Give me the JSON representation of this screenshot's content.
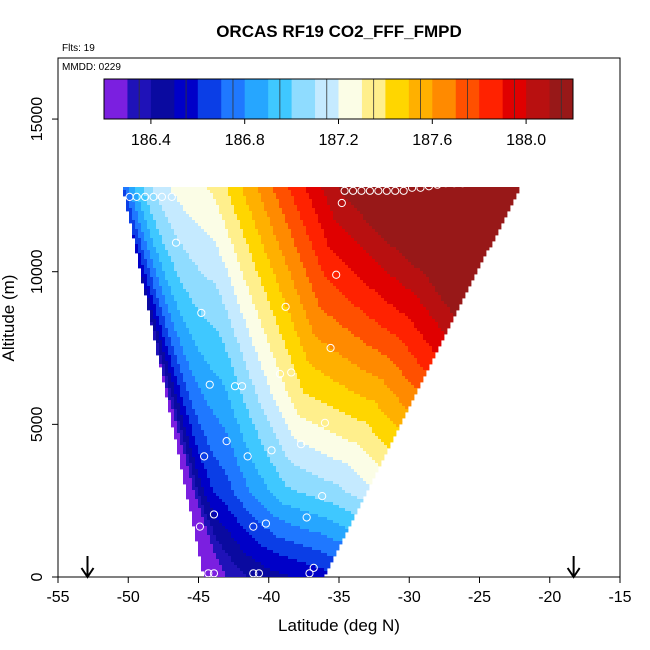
{
  "chart_data": {
    "type": "heatmap",
    "title": "ORCAS RF19 CO2_FFF_FMPD",
    "flights_label": "Flts: 19",
    "date_label": "MMDD: 0229",
    "xlabel": "Latitude (deg N)",
    "ylabel": "Altitude (m)",
    "xlim": [
      -55,
      -15
    ],
    "ylim": [
      0,
      17000
    ],
    "x_ticks": [
      -55,
      -50,
      -45,
      -40,
      -35,
      -30,
      -25,
      -20,
      -15
    ],
    "y_ticks": [
      0,
      5000,
      10000,
      15000
    ],
    "x_tick_labels": [
      "-55",
      "-50",
      "-45",
      "-40",
      "-35",
      "-30",
      "-25",
      "-20",
      "-15"
    ],
    "y_tick_labels": [
      "0",
      "5000",
      "10000",
      "15000"
    ],
    "colorbar": {
      "min": 186.2,
      "max": 188.2,
      "step": 0.1,
      "tick_values": [
        186.4,
        186.8,
        187.2,
        187.6,
        188.0
      ],
      "tick_labels": [
        "186.4",
        "186.8",
        "187.2",
        "187.6",
        "188.0"
      ],
      "colors": [
        "#7b1fe0",
        "#1f12b8",
        "#0a0aa0",
        "#0000c8",
        "#0b3ee6",
        "#1f78ff",
        "#26a6ff",
        "#3fc8ff",
        "#8fdcff",
        "#c5eaff",
        "#fbfde6",
        "#ffef8c",
        "#ffd600",
        "#ffb000",
        "#ff8a00",
        "#ff5000",
        "#ff2200",
        "#e00000",
        "#b81010",
        "#981818"
      ]
    },
    "field_domain": {
      "bottom_altitude": 0,
      "top_altitude": 12800,
      "bottom_lat_range": [
        -44.5,
        -36.2
      ],
      "top_lat_range": [
        -50.3,
        -22.2
      ]
    },
    "markers": [
      {
        "x": -52.9,
        "label": "arrow-down"
      },
      {
        "x": -18.3,
        "label": "arrow-down"
      }
    ],
    "sample_points": [
      [
        -49.9,
        12450
      ],
      [
        -49.4,
        12450
      ],
      [
        -48.8,
        12450
      ],
      [
        -48.2,
        12450
      ],
      [
        -47.6,
        12450
      ],
      [
        -46.9,
        12450
      ],
      [
        -34.6,
        12650
      ],
      [
        -34.0,
        12650
      ],
      [
        -33.4,
        12650
      ],
      [
        -32.8,
        12650
      ],
      [
        -32.2,
        12650
      ],
      [
        -31.6,
        12650
      ],
      [
        -31.0,
        12650
      ],
      [
        -30.4,
        12650
      ],
      [
        -29.8,
        12750
      ],
      [
        -29.2,
        12750
      ],
      [
        -28.6,
        12800
      ],
      [
        -28.0,
        12850
      ],
      [
        -27.4,
        12900
      ],
      [
        -26.8,
        12900
      ],
      [
        -26.2,
        12900
      ],
      [
        -25.6,
        12950
      ],
      [
        -25.0,
        12950
      ],
      [
        -24.4,
        12950
      ],
      [
        -23.8,
        12950
      ],
      [
        -23.2,
        12950
      ],
      [
        -22.5,
        12950
      ],
      [
        -34.8,
        12250
      ],
      [
        -46.6,
        10950
      ],
      [
        -35.2,
        9900
      ],
      [
        -38.8,
        8850
      ],
      [
        -44.8,
        8650
      ],
      [
        -35.6,
        7500
      ],
      [
        -39.2,
        6650
      ],
      [
        -38.4,
        6700
      ],
      [
        -44.2,
        6300
      ],
      [
        -42.4,
        6250
      ],
      [
        -41.9,
        6250
      ],
      [
        -36.0,
        5050
      ],
      [
        -43.0,
        4450
      ],
      [
        -37.7,
        4350
      ],
      [
        -39.8,
        4150
      ],
      [
        -44.6,
        3950
      ],
      [
        -41.5,
        3950
      ],
      [
        -36.2,
        2650
      ],
      [
        -43.9,
        2050
      ],
      [
        -37.3,
        1950
      ],
      [
        -44.9,
        1650
      ],
      [
        -40.2,
        1750
      ],
      [
        -41.1,
        1650
      ],
      [
        -44.3,
        120
      ],
      [
        -43.9,
        120
      ],
      [
        -41.1,
        120
      ],
      [
        -40.7,
        120
      ],
      [
        -37.1,
        120
      ],
      [
        -36.8,
        300
      ]
    ]
  }
}
